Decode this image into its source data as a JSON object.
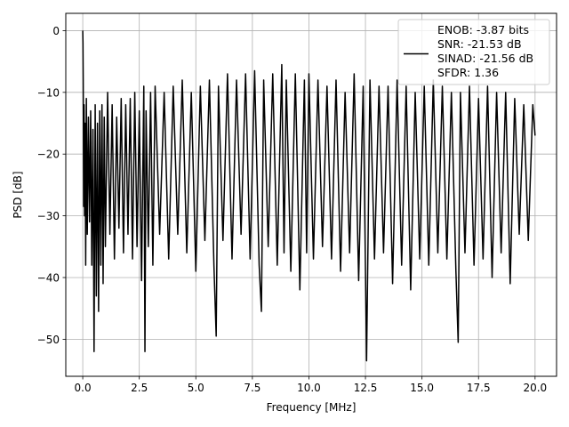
{
  "chart_data": {
    "type": "line",
    "title": "",
    "xlabel": "Frequency [MHz]",
    "ylabel": "PSD [dB]",
    "xlim": [
      -0.75,
      20.95
    ],
    "ylim": [
      -56,
      2.8
    ],
    "xticks": [
      0.0,
      2.5,
      5.0,
      7.5,
      10.0,
      12.5,
      15.0,
      17.5,
      20.0
    ],
    "xtick_labels": [
      "0.0",
      "2.5",
      "5.0",
      "7.5",
      "10.0",
      "12.5",
      "15.0",
      "17.5",
      "20.0"
    ],
    "yticks": [
      0,
      -10,
      -20,
      -30,
      -40,
      -50
    ],
    "ytick_labels": [
      "0",
      "−10",
      "−20",
      "−30",
      "−40",
      "−50"
    ],
    "grid": true,
    "legend_placement": "top-right",
    "legend_lines": [
      "ENOB: -3.87 bits",
      "SNR: -21.53 dB",
      "SINAD: -21.56 dB",
      "SFDR: 1.36"
    ],
    "series": [
      {
        "color": "#000000",
        "x": [
          0.0,
          0.01,
          0.02,
          0.04,
          0.06,
          0.08,
          0.1,
          0.13,
          0.16,
          0.2,
          0.25,
          0.3,
          0.35,
          0.4,
          0.45,
          0.5,
          0.55,
          0.6,
          0.65,
          0.7,
          0.75,
          0.8,
          0.85,
          0.9,
          0.95,
          1.0,
          1.1,
          1.2,
          1.3,
          1.4,
          1.5,
          1.6,
          1.7,
          1.8,
          1.9,
          2.0,
          2.1,
          2.2,
          2.3,
          2.4,
          2.5,
          2.6,
          2.7,
          2.75,
          2.8,
          2.9,
          3.0,
          3.1,
          3.2,
          3.4,
          3.6,
          3.8,
          4.0,
          4.2,
          4.4,
          4.6,
          4.8,
          5.0,
          5.2,
          5.4,
          5.6,
          5.8,
          5.9,
          6.0,
          6.2,
          6.4,
          6.6,
          6.8,
          7.0,
          7.2,
          7.4,
          7.6,
          7.8,
          7.9,
          8.0,
          8.2,
          8.4,
          8.6,
          8.8,
          8.9,
          9.0,
          9.2,
          9.4,
          9.6,
          9.8,
          9.9,
          10.0,
          10.2,
          10.4,
          10.6,
          10.8,
          11.0,
          11.2,
          11.4,
          11.6,
          11.8,
          12.0,
          12.2,
          12.4,
          12.55,
          12.7,
          12.9,
          13.1,
          13.3,
          13.5,
          13.7,
          13.9,
          14.1,
          14.3,
          14.5,
          14.7,
          14.9,
          15.1,
          15.3,
          15.5,
          15.7,
          15.9,
          16.1,
          16.3,
          16.5,
          16.6,
          16.7,
          16.9,
          17.1,
          17.3,
          17.5,
          17.7,
          17.9,
          18.1,
          18.3,
          18.5,
          18.7,
          18.9,
          19.1,
          19.3,
          19.5,
          19.7,
          19.9,
          20.0
        ],
        "y": [
          0.0,
          -2.0,
          -8.0,
          -28.5,
          -12.0,
          -30.0,
          -15.0,
          -38.0,
          -11.0,
          -33.0,
          -14.0,
          -31.0,
          -13.0,
          -38.0,
          -16.0,
          -52.0,
          -12.0,
          -43.0,
          -15.0,
          -45.5,
          -13.0,
          -38.0,
          -12.0,
          -41.0,
          -14.0,
          -35.0,
          -10.0,
          -33.0,
          -12.0,
          -37.0,
          -14.0,
          -32.0,
          -11.0,
          -36.0,
          -12.0,
          -33.0,
          -11.0,
          -37.0,
          -10.0,
          -35.0,
          -13.0,
          -40.5,
          -9.0,
          -52.0,
          -13.0,
          -35.0,
          -10.0,
          -38.0,
          -9.0,
          -33.0,
          -10.0,
          -37.0,
          -9.0,
          -33.0,
          -8.0,
          -36.0,
          -10.0,
          -39.0,
          -9.0,
          -34.0,
          -8.0,
          -38.0,
          -49.5,
          -9.0,
          -34.0,
          -7.0,
          -37.0,
          -8.0,
          -33.0,
          -7.0,
          -37.0,
          -6.5,
          -38.0,
          -45.5,
          -8.0,
          -35.0,
          -7.0,
          -38.0,
          -5.5,
          -36.0,
          -8.0,
          -39.0,
          -7.0,
          -42.0,
          -8.0,
          -36.0,
          -7.0,
          -37.0,
          -8.0,
          -35.0,
          -9.0,
          -37.0,
          -8.0,
          -39.0,
          -10.0,
          -36.0,
          -7.0,
          -40.5,
          -9.0,
          -53.5,
          -8.0,
          -37.0,
          -9.0,
          -36.0,
          -9.0,
          -41.0,
          -8.0,
          -38.0,
          -9.0,
          -42.0,
          -10.0,
          -37.0,
          -9.0,
          -38.0,
          -8.0,
          -36.0,
          -9.0,
          -37.0,
          -10.0,
          -39.0,
          -50.5,
          -10.0,
          -36.0,
          -9.0,
          -38.0,
          -11.0,
          -37.0,
          -9.0,
          -40.0,
          -10.0,
          -36.0,
          -10.0,
          -41.0,
          -11.0,
          -33.0,
          -12.0,
          -34.0,
          -12.0,
          -17.0
        ]
      }
    ]
  }
}
